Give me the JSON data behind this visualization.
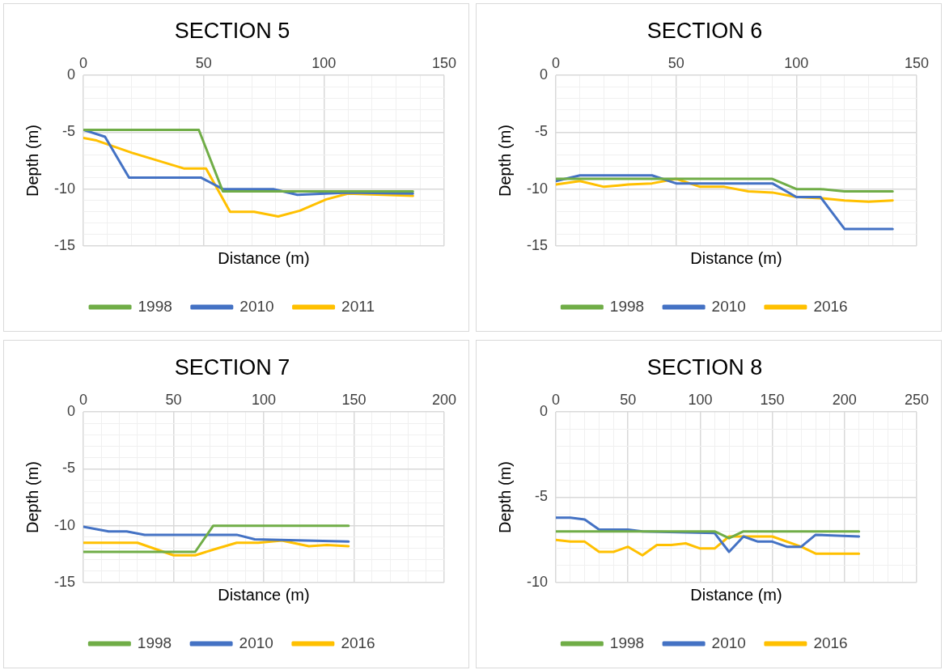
{
  "chart_data": [
    {
      "type": "line",
      "title": "SECTION 5",
      "xlabel": "Distance (m)",
      "ylabel": "Depth (m)",
      "grid": true,
      "legend": "bottom",
      "marker": "none",
      "line_style": "solid",
      "xlim": [
        0,
        150
      ],
      "xticks": [
        0,
        {
          "value": 10,
          "label": null
        },
        {
          "value": 20,
          "label": null
        },
        {
          "value": 30,
          "label": null
        },
        {
          "value": 40,
          "label": null
        },
        50,
        {
          "value": 60,
          "label": null
        },
        {
          "value": 70,
          "label": null
        },
        {
          "value": 80,
          "label": null
        },
        {
          "value": 90,
          "label": null
        },
        100,
        {
          "value": 110,
          "label": null
        },
        {
          "value": 120,
          "label": null
        },
        {
          "value": 130,
          "label": null
        },
        {
          "value": 140,
          "label": null
        },
        150
      ],
      "ylim": [
        -15,
        0
      ],
      "yticks": [
        -15,
        {
          "value": -14,
          "label": null
        },
        {
          "value": -13,
          "label": null
        },
        {
          "value": -12,
          "label": null
        },
        {
          "value": -11,
          "label": null
        },
        -10,
        {
          "value": -9,
          "label": null
        },
        {
          "value": -8,
          "label": null
        },
        {
          "value": -7,
          "label": null
        },
        {
          "value": -6,
          "label": null
        },
        -5,
        {
          "value": -4,
          "label": null
        },
        {
          "value": -3,
          "label": null
        },
        {
          "value": -2,
          "label": null
        },
        {
          "value": -1,
          "label": null
        },
        0
      ],
      "series": [
        {
          "name": "1998",
          "color": "#70ad47",
          "x": [
            0,
            48,
            58,
            137
          ],
          "values": [
            -4.8,
            -4.8,
            -10.2,
            -10.2
          ]
        },
        {
          "name": "2010",
          "color": "#4472c4",
          "x": [
            0,
            9,
            19,
            49,
            58,
            79,
            89,
            110,
            137
          ],
          "values": [
            -4.8,
            -5.4,
            -9,
            -9,
            -10,
            -10,
            -10.5,
            -10.3,
            -10.4
          ]
        },
        {
          "name": "2011",
          "color": "#ffc000",
          "x": [
            0,
            5,
            20,
            42,
            51,
            61,
            71,
            81,
            90,
            101,
            110,
            137
          ],
          "values": [
            -5.5,
            -5.7,
            -6.8,
            -8.2,
            -8.2,
            -12,
            -12,
            -12.4,
            -11.9,
            -10.9,
            -10.4,
            -10.6
          ]
        }
      ]
    },
    {
      "type": "line",
      "title": "SECTION 6",
      "xlabel": "Distance (m)",
      "ylabel": "Depth (m)",
      "grid": true,
      "legend": "bottom",
      "marker": "none",
      "line_style": "solid",
      "xlim": [
        0,
        150
      ],
      "xticks": [
        0,
        {
          "value": 10,
          "label": null
        },
        {
          "value": 20,
          "label": null
        },
        {
          "value": 30,
          "label": null
        },
        {
          "value": 40,
          "label": null
        },
        50,
        {
          "value": 60,
          "label": null
        },
        {
          "value": 70,
          "label": null
        },
        {
          "value": 80,
          "label": null
        },
        {
          "value": 90,
          "label": null
        },
        100,
        {
          "value": 110,
          "label": null
        },
        {
          "value": 120,
          "label": null
        },
        {
          "value": 130,
          "label": null
        },
        {
          "value": 140,
          "label": null
        },
        150
      ],
      "ylim": [
        -15,
        0
      ],
      "yticks": [
        -15,
        {
          "value": -14,
          "label": null
        },
        {
          "value": -13,
          "label": null
        },
        {
          "value": -12,
          "label": null
        },
        {
          "value": -11,
          "label": null
        },
        -10,
        {
          "value": -9,
          "label": null
        },
        {
          "value": -8,
          "label": null
        },
        {
          "value": -7,
          "label": null
        },
        {
          "value": -6,
          "label": null
        },
        -5,
        {
          "value": -4,
          "label": null
        },
        {
          "value": -3,
          "label": null
        },
        {
          "value": -2,
          "label": null
        },
        {
          "value": -1,
          "label": null
        },
        0
      ],
      "series": [
        {
          "name": "1998",
          "color": "#70ad47",
          "x": [
            0,
            90,
            100,
            110,
            120,
            140
          ],
          "values": [
            -9.1,
            -9.1,
            -10,
            -10,
            -10.2,
            -10.2
          ]
        },
        {
          "name": "2010",
          "color": "#4472c4",
          "x": [
            0,
            10,
            40,
            50,
            90,
            100,
            110,
            120,
            140
          ],
          "values": [
            -9.3,
            -8.8,
            -8.8,
            -9.5,
            -9.5,
            -10.7,
            -10.7,
            -13.5,
            -13.5
          ]
        },
        {
          "name": "2016",
          "color": "#ffc000",
          "x": [
            0,
            10,
            20,
            30,
            40,
            50,
            60,
            70,
            80,
            90,
            100,
            110,
            120,
            130,
            140
          ],
          "values": [
            -9.6,
            -9.3,
            -9.8,
            -9.6,
            -9.5,
            -9.1,
            -9.8,
            -9.8,
            -10.2,
            -10.3,
            -10.7,
            -10.8,
            -11,
            -11.1,
            -11
          ]
        }
      ]
    },
    {
      "type": "line",
      "title": "SECTION 7",
      "xlabel": "Distance (m)",
      "ylabel": "Depth (m)",
      "grid": true,
      "legend": "bottom",
      "marker": "none",
      "line_style": "solid",
      "xlim": [
        0,
        200
      ],
      "xticks": [
        0,
        {
          "value": 10,
          "label": null
        },
        {
          "value": 20,
          "label": null
        },
        {
          "value": 30,
          "label": null
        },
        {
          "value": 40,
          "label": null
        },
        50,
        {
          "value": 60,
          "label": null
        },
        {
          "value": 70,
          "label": null
        },
        {
          "value": 80,
          "label": null
        },
        {
          "value": 90,
          "label": null
        },
        100,
        {
          "value": 110,
          "label": null
        },
        {
          "value": 120,
          "label": null
        },
        {
          "value": 130,
          "label": null
        },
        {
          "value": 140,
          "label": null
        },
        150,
        {
          "value": 160,
          "label": null
        },
        {
          "value": 170,
          "label": null
        },
        {
          "value": 180,
          "label": null
        },
        {
          "value": 190,
          "label": null
        },
        200
      ],
      "ylim": [
        -15,
        0
      ],
      "yticks": [
        -15,
        {
          "value": -14,
          "label": null
        },
        {
          "value": -13,
          "label": null
        },
        {
          "value": -12,
          "label": null
        },
        {
          "value": -11,
          "label": null
        },
        -10,
        {
          "value": -9,
          "label": null
        },
        {
          "value": -8,
          "label": null
        },
        {
          "value": -7,
          "label": null
        },
        {
          "value": -6,
          "label": null
        },
        -5,
        {
          "value": -4,
          "label": null
        },
        {
          "value": -3,
          "label": null
        },
        {
          "value": -2,
          "label": null
        },
        {
          "value": -1,
          "label": null
        },
        0
      ],
      "series": [
        {
          "name": "1998",
          "color": "#70ad47",
          "x": [
            0,
            62,
            72,
            147
          ],
          "values": [
            -12.3,
            -12.3,
            -10,
            -10
          ]
        },
        {
          "name": "2010",
          "color": "#4472c4",
          "x": [
            0,
            14,
            24,
            34,
            85,
            95,
            147
          ],
          "values": [
            -10.1,
            -10.5,
            -10.5,
            -10.8,
            -10.8,
            -11.2,
            -11.4
          ]
        },
        {
          "name": "2016",
          "color": "#ffc000",
          "x": [
            0,
            30,
            50,
            62,
            72,
            85,
            97,
            110,
            125,
            135,
            147
          ],
          "values": [
            -11.5,
            -11.5,
            -12.6,
            -12.6,
            -12.1,
            -11.5,
            -11.5,
            -11.3,
            -11.8,
            -11.7,
            -11.8
          ]
        }
      ]
    },
    {
      "type": "line",
      "title": "SECTION 8",
      "xlabel": "Distance (m)",
      "ylabel": "Depth (m)",
      "grid": true,
      "legend": "bottom",
      "marker": "none",
      "line_style": "solid",
      "xlim": [
        0,
        250
      ],
      "xticks": [
        0,
        {
          "value": 10,
          "label": null
        },
        {
          "value": 20,
          "label": null
        },
        {
          "value": 30,
          "label": null
        },
        {
          "value": 40,
          "label": null
        },
        50,
        {
          "value": 60,
          "label": null
        },
        {
          "value": 70,
          "label": null
        },
        {
          "value": 80,
          "label": null
        },
        {
          "value": 90,
          "label": null
        },
        100,
        {
          "value": 110,
          "label": null
        },
        {
          "value": 120,
          "label": null
        },
        {
          "value": 130,
          "label": null
        },
        {
          "value": 140,
          "label": null
        },
        150,
        {
          "value": 160,
          "label": null
        },
        {
          "value": 170,
          "label": null
        },
        {
          "value": 180,
          "label": null
        },
        {
          "value": 190,
          "label": null
        },
        200,
        {
          "value": 210,
          "label": null
        },
        {
          "value": 220,
          "label": null
        },
        {
          "value": 230,
          "label": null
        },
        {
          "value": 240,
          "label": null
        },
        250
      ],
      "ylim": [
        -10,
        0
      ],
      "yticks": [
        -10,
        {
          "value": -9,
          "label": null
        },
        {
          "value": -8,
          "label": null
        },
        {
          "value": -7,
          "label": null
        },
        {
          "value": -6,
          "label": null
        },
        -5,
        {
          "value": -4,
          "label": null
        },
        {
          "value": -3,
          "label": null
        },
        {
          "value": -2,
          "label": null
        },
        {
          "value": -1,
          "label": null
        },
        0
      ],
      "series": [
        {
          "name": "1998",
          "color": "#70ad47",
          "x": [
            0,
            110,
            120,
            130,
            210
          ],
          "values": [
            -7,
            -7,
            -7.4,
            -7,
            -7
          ]
        },
        {
          "name": "2010",
          "color": "#4472c4",
          "x": [
            0,
            10,
            20,
            30,
            50,
            60,
            110,
            120,
            130,
            140,
            150,
            160,
            170,
            180,
            210
          ],
          "values": [
            -6.2,
            -6.2,
            -6.3,
            -6.9,
            -6.9,
            -7,
            -7.1,
            -8.2,
            -7.3,
            -7.6,
            -7.6,
            -7.9,
            -7.9,
            -7.2,
            -7.3
          ]
        },
        {
          "name": "2016",
          "color": "#ffc000",
          "x": [
            0,
            10,
            20,
            30,
            40,
            50,
            60,
            70,
            80,
            90,
            100,
            110,
            120,
            130,
            150,
            170,
            180,
            210
          ],
          "values": [
            -7.5,
            -7.6,
            -7.6,
            -8.2,
            -8.2,
            -7.9,
            -8.4,
            -7.8,
            -7.8,
            -7.7,
            -8,
            -8,
            -7.3,
            -7.3,
            -7.3,
            -7.9,
            -8.3,
            -8.3
          ]
        }
      ]
    }
  ]
}
